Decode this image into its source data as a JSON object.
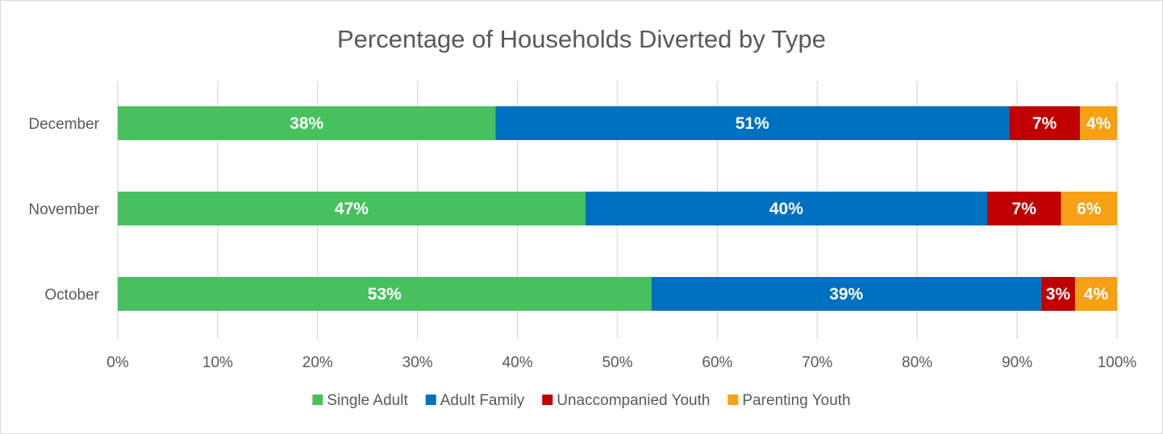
{
  "chart_data": {
    "type": "bar",
    "orientation": "horizontal",
    "stacked": true,
    "title": "Percentage of Households Diverted by Type",
    "categories": [
      "December",
      "November",
      "October"
    ],
    "series": [
      {
        "name": "Single Adult",
        "color": "#47c15e",
        "values": [
          37.8,
          46.8,
          53.4
        ],
        "labels": [
          "38%",
          "47%",
          "53%"
        ]
      },
      {
        "name": "Adult Family",
        "color": "#0070c0",
        "values": [
          51.4,
          40.2,
          39.0
        ],
        "labels": [
          "51%",
          "40%",
          "39%"
        ]
      },
      {
        "name": "Unaccompanied Youth",
        "color": "#c00000",
        "values": [
          7.1,
          7.4,
          3.4
        ],
        "labels": [
          "7%",
          "7%",
          "3%"
        ]
      },
      {
        "name": "Parenting Youth",
        "color": "#f7a014",
        "values": [
          3.7,
          5.6,
          4.2
        ],
        "labels": [
          "4%",
          "6%",
          "4%"
        ]
      }
    ],
    "xlim": [
      0,
      100
    ],
    "x_ticks": [
      "0%",
      "10%",
      "20%",
      "30%",
      "40%",
      "50%",
      "60%",
      "70%",
      "80%",
      "90%",
      "100%"
    ],
    "grid": true,
    "legend_position": "bottom"
  }
}
